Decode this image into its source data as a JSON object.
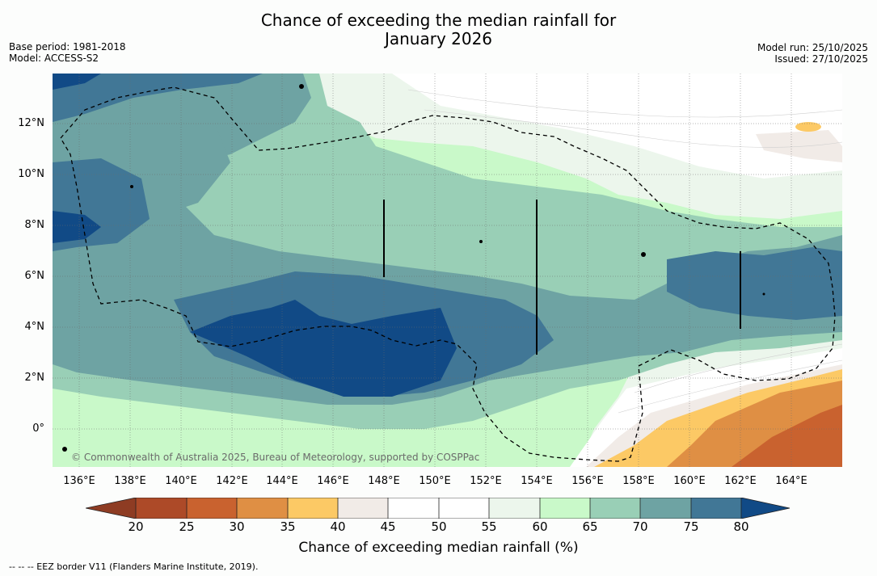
{
  "title": {
    "line1": "Chance of exceeding the median rainfall for",
    "line2": "January 2026"
  },
  "meta": {
    "base_period": "Base period: 1981-2018",
    "model": "Model: ACCESS-S2",
    "model_run": "Model run: 25/10/2025",
    "issued": "Issued: 27/10/2025"
  },
  "map": {
    "lat_labels": [
      "12°N",
      "10°N",
      "8°N",
      "6°N",
      "4°N",
      "2°N",
      "0°"
    ],
    "lon_labels": [
      "136°E",
      "138°E",
      "140°E",
      "142°E",
      "144°E",
      "146°E",
      "148°E",
      "150°E",
      "152°E",
      "154°E",
      "156°E",
      "158°E",
      "160°E",
      "162°E",
      "164°E"
    ],
    "copyright": "© Commonwealth of Australia 2025, Bureau of Meteorology, supported by COSPPac"
  },
  "colorbar": {
    "ticks": [
      "20",
      "25",
      "30",
      "35",
      "40",
      "45",
      "50",
      "55",
      "60",
      "65",
      "70",
      "75",
      "80"
    ],
    "colors": {
      "below20": "#8e3c23",
      "c20_25": "#ad4a28",
      "c25_30": "#c9622f",
      "c30_35": "#df8f44",
      "c35_40": "#fcc965",
      "c40_45": "#f1ebe7",
      "c45_50": "#ffffff",
      "c50_55": "#ffffff",
      "c55_60": "#ecf6ec",
      "c60_65": "#c9f9c9",
      "c65_70": "#99cfb6",
      "c70_75": "#6ea3a3",
      "c75_80": "#417796",
      "above80": "#114a86"
    },
    "label": "Chance of exceeding median rainfall (%)"
  },
  "footnote": "--  --  -- EEZ border V11 (Flanders Marine Institute, 2019)."
}
